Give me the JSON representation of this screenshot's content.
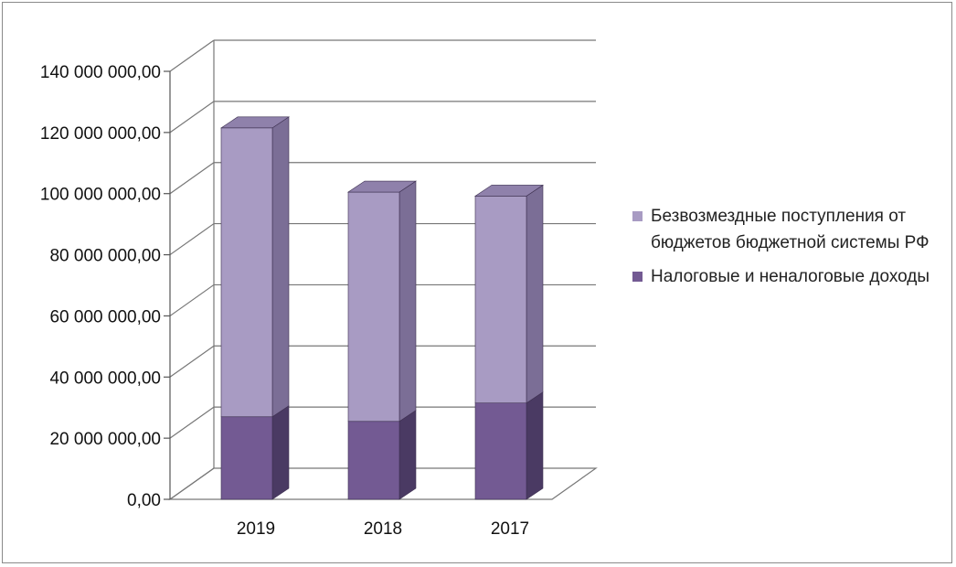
{
  "chart_data": {
    "type": "bar",
    "stacked": true,
    "three_d": true,
    "categories": [
      "2019",
      "2018",
      "2017"
    ],
    "series": [
      {
        "name": "Налоговые и неналоговые доходы",
        "values": [
          27000000,
          25500000,
          31500000
        ],
        "color": "#735a93"
      },
      {
        "name": "Безвозмездные поступления от бюджетов бюджетной системы РФ",
        "values": [
          94500000,
          75000000,
          67700000
        ],
        "color": "#a89bc3"
      }
    ],
    "ylim": [
      0,
      140000000
    ],
    "yticks": [
      "0,00",
      "20 000 000,00",
      "40 000 000,00",
      "60 000 000,00",
      "80 000 000,00",
      "100 000 000,00",
      "120 000 000,00",
      "140 000 000,00"
    ],
    "grid": true,
    "legend_position": "right",
    "title": "",
    "xlabel": "",
    "ylabel": ""
  }
}
